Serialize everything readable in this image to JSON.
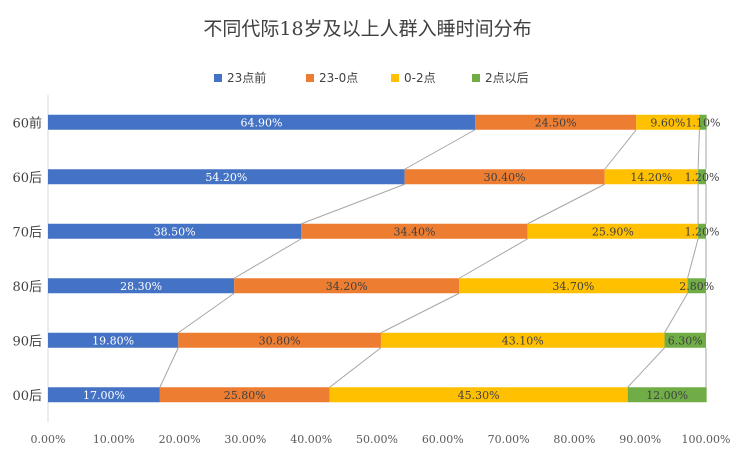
{
  "title": "不同代际18岁及以上人群入睡时间分布",
  "chart_data": {
    "type": "bar",
    "orientation": "horizontal",
    "stacked": true,
    "title": "不同代际18岁及以上人群入睡时间分布",
    "categories": [
      "60前",
      "60后",
      "70后",
      "80后",
      "90后",
      "00后"
    ],
    "series": [
      {
        "name": "23点前",
        "color": "#4472c4",
        "values": [
          64.9,
          54.2,
          38.5,
          28.3,
          19.8,
          17.0
        ]
      },
      {
        "name": "23-0点",
        "color": "#ed7d31",
        "values": [
          24.5,
          30.4,
          34.4,
          34.2,
          30.8,
          25.8
        ]
      },
      {
        "name": "0-2点",
        "color": "#ffc000",
        "values": [
          9.6,
          14.2,
          25.9,
          34.7,
          43.1,
          45.3
        ]
      },
      {
        "name": "2点以后",
        "color": "#70ad47",
        "values": [
          1.1,
          1.2,
          1.2,
          2.8,
          6.3,
          12.0
        ]
      }
    ],
    "data_labels": [
      [
        "64.90%",
        "54.20%",
        "38.50%",
        "28.30%",
        "19.80%",
        "17.00%"
      ],
      [
        "24.50%",
        "30.40%",
        "34.40%",
        "34.20%",
        "30.80%",
        "25.80%"
      ],
      [
        "9.60%",
        "14.20%",
        "25.90%",
        "34.70%",
        "43.10%",
        "45.30%"
      ],
      [
        "1.10%",
        "1.20%",
        "1.20%",
        "2.80%",
        "6.30%",
        "12.00%"
      ]
    ],
    "xlim": [
      0,
      100
    ],
    "x_ticks": [
      "0.00%",
      "10.00%",
      "20.00%",
      "30.00%",
      "40.00%",
      "50.00%",
      "60.00%",
      "70.00%",
      "80.00%",
      "90.00%",
      "100.00%"
    ],
    "series_lines": true,
    "legend_position": "top",
    "grid": false
  }
}
